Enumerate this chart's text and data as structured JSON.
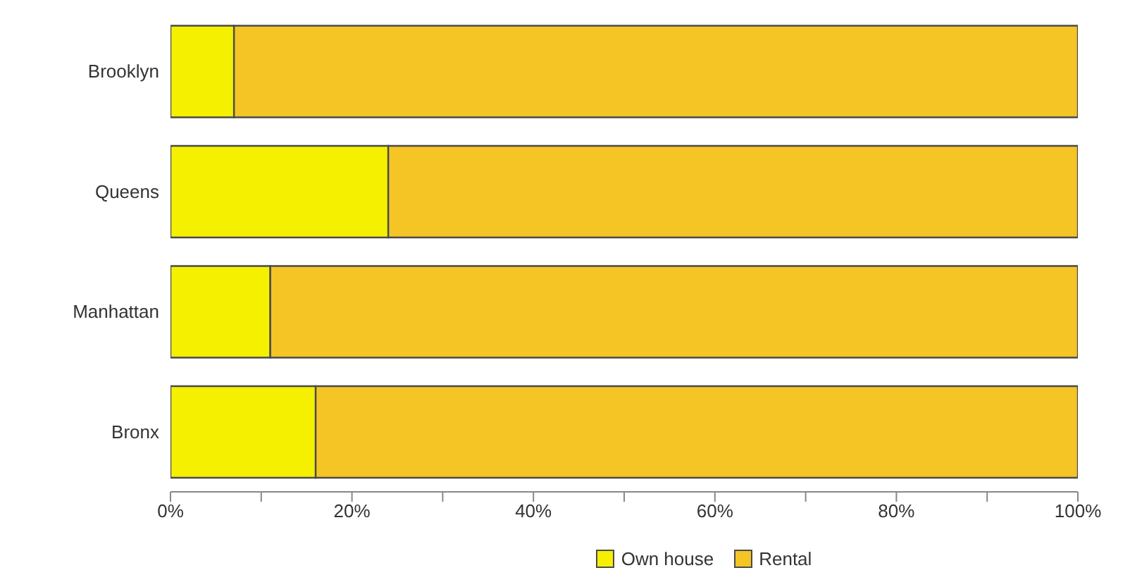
{
  "chart_data": {
    "type": "bar",
    "orientation": "horizontal",
    "stacked": true,
    "categories": [
      "Brooklyn",
      "Queens",
      "Manhattan",
      "Bronx"
    ],
    "series": [
      {
        "name": "Own house",
        "color": "#f5f000",
        "values": [
          7,
          24,
          11,
          16
        ]
      },
      {
        "name": "Rental",
        "color": "#f5c526",
        "values": [
          93,
          76,
          89,
          84
        ]
      }
    ],
    "xlim": [
      0,
      100
    ],
    "xticks": [
      {
        "value": 0,
        "label": "0%"
      },
      {
        "value": 10,
        "label": null
      },
      {
        "value": 20,
        "label": "20%"
      },
      {
        "value": 30,
        "label": null
      },
      {
        "value": 40,
        "label": "40%"
      },
      {
        "value": 50,
        "label": null
      },
      {
        "value": 60,
        "label": "60%"
      },
      {
        "value": 70,
        "label": null
      },
      {
        "value": 80,
        "label": "80%"
      },
      {
        "value": 90,
        "label": null
      },
      {
        "value": 100,
        "label": "100%"
      }
    ],
    "grid": false,
    "legend": "bottom"
  }
}
